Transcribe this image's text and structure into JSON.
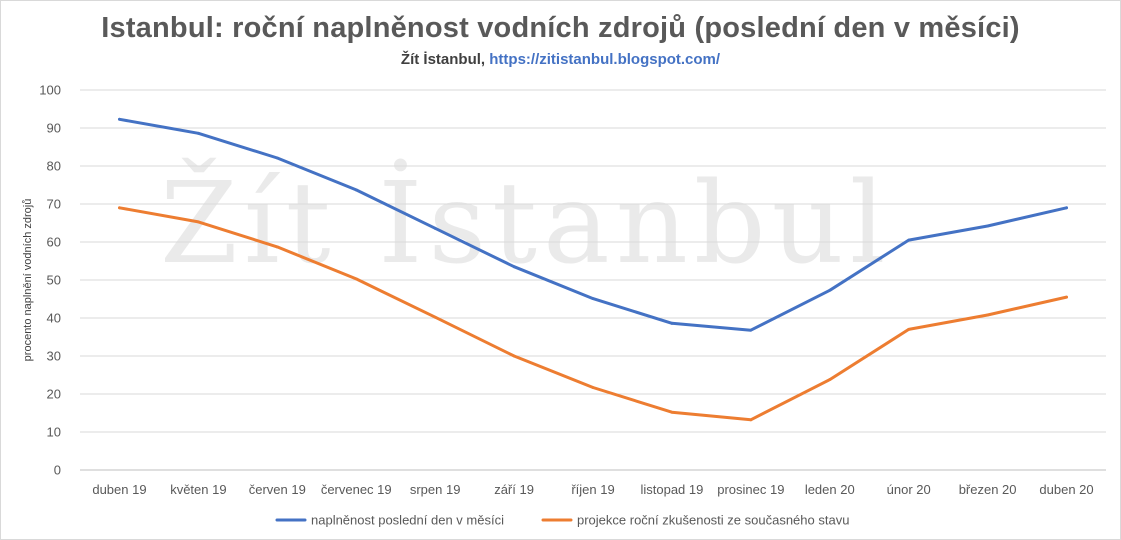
{
  "chart_data": {
    "type": "line",
    "title": "Istanbul: roční naplněnost vodních zdrojů (poslední den v měsíci)",
    "subtitle_prefix": "Žít İstanbul, ",
    "subtitle_link": "https://zitistanbul.blogspot.com/",
    "watermark": "Žít İstanbul",
    "ylabel": "procento naplnění vodních zdrojů",
    "xlabel": "",
    "ylim": [
      0,
      100
    ],
    "yticks": [
      0,
      10,
      20,
      30,
      40,
      50,
      60,
      70,
      80,
      90,
      100
    ],
    "grid": true,
    "legend_position": "bottom",
    "categories": [
      "duben 19",
      "květen 19",
      "červen 19",
      "červenec 19",
      "srpen 19",
      "září 19",
      "říjen 19",
      "listopad 19",
      "prosinec 19",
      "leden 20",
      "únor 20",
      "březen 20",
      "duben 20"
    ],
    "series": [
      {
        "name": "naplněnost poslední den v měsíci",
        "color": "#4472c4",
        "values": [
          92.3,
          88.6,
          82.1,
          73.7,
          63.6,
          53.5,
          45.1,
          38.6,
          36.8,
          47.3,
          60.5,
          64.2,
          69.0
        ]
      },
      {
        "name": "projekce roční zkušenosti ze současného stavu",
        "color": "#ed7d31",
        "values": [
          69.0,
          65.3,
          58.7,
          50.3,
          40.2,
          30.0,
          21.7,
          15.2,
          13.2,
          23.8,
          37.0,
          40.8,
          45.5
        ]
      }
    ]
  }
}
